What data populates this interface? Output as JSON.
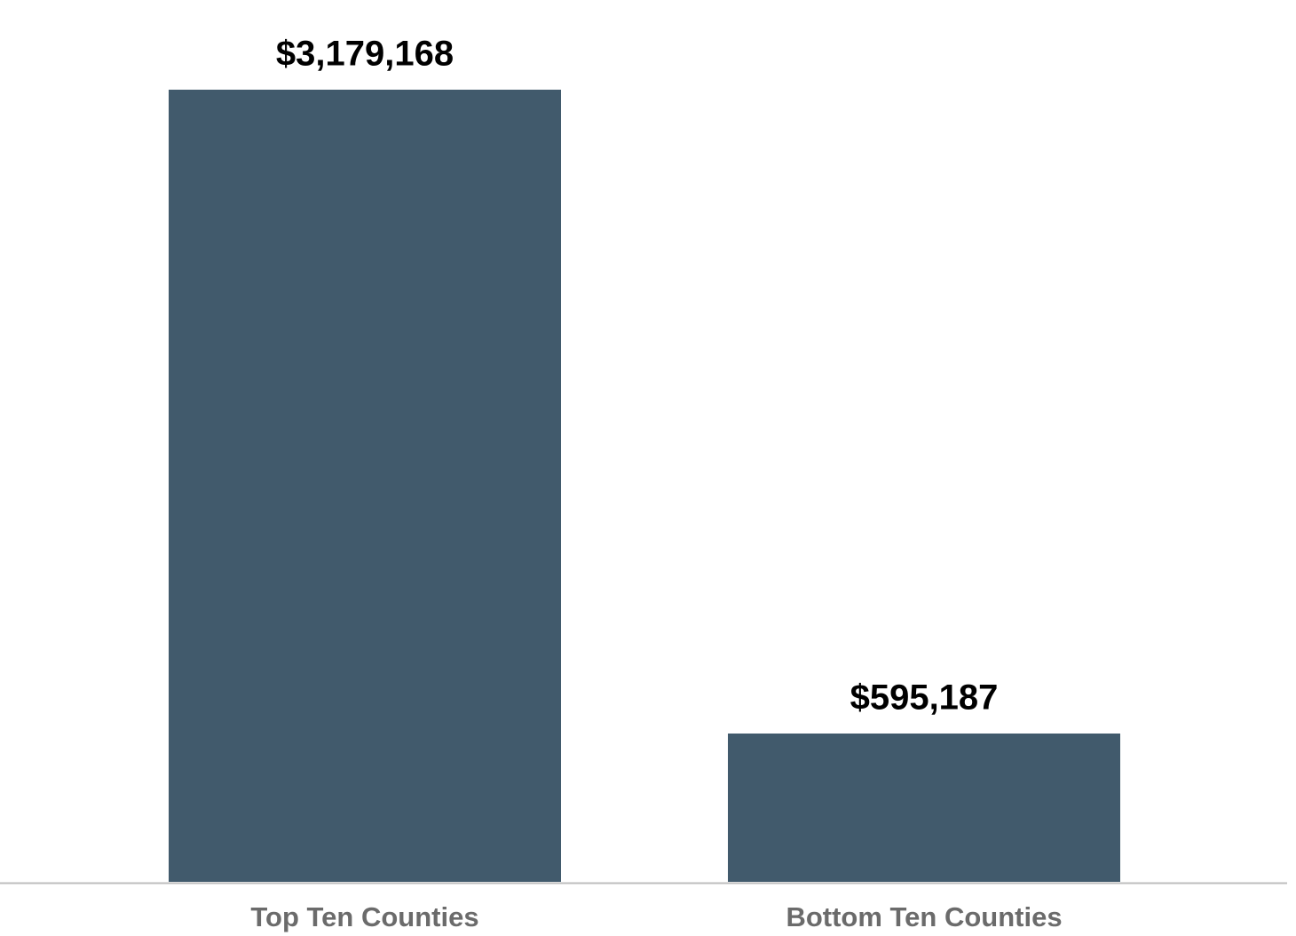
{
  "chart_data": {
    "type": "bar",
    "categories": [
      "Top Ten Counties",
      "Bottom Ten Counties"
    ],
    "values": [
      3179168,
      595187
    ],
    "value_labels": [
      "$3,179,168",
      "$595,187"
    ],
    "color": "#415a6c"
  }
}
